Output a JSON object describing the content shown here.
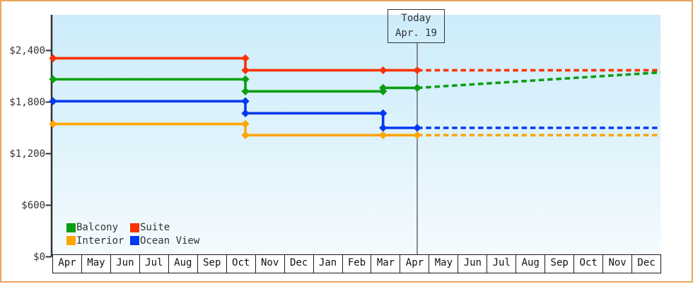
{
  "window": {
    "background_color": "#ffffff",
    "border_color": "#eaa55e"
  },
  "chart_data": {
    "type": "line",
    "description_units": "x in months from first Apr (0) to final Dec (21), y in US dollars",
    "x_tick_labels": [
      "Apr",
      "May",
      "Jun",
      "Jul",
      "Aug",
      "Sep",
      "Oct",
      "Nov",
      "Dec",
      "Jan",
      "Feb",
      "Mar",
      "Apr",
      "May",
      "Jun",
      "Jul",
      "Aug",
      "Sep",
      "Oct",
      "Nov",
      "Dec"
    ],
    "y_ticks": [
      {
        "label": "$2,400",
        "value": 2400
      },
      {
        "label": "$1,800",
        "value": 1800
      },
      {
        "label": "$1,200",
        "value": 1200
      },
      {
        "label": "$600",
        "value": 600
      },
      {
        "label": "$0",
        "value": 0
      }
    ],
    "ylim": [
      0,
      2815
    ],
    "xlim_months": [
      0,
      21
    ],
    "grid": false,
    "today": {
      "label": "Today",
      "date": "Apr. 19",
      "month_offset": 12.59
    },
    "axis_color": "#333333",
    "today_line_color": "#555555",
    "legend_position": "inside-bottom-left",
    "legend": [
      {
        "label": "Balcony",
        "color": "#0a9e12"
      },
      {
        "label": "Suite",
        "color": "#fa3305"
      },
      {
        "label": "Interior",
        "color": "#ffa502"
      },
      {
        "label": "Ocean View",
        "color": "#0639ee"
      }
    ],
    "series": [
      {
        "name": "Suite",
        "color": "#fa3305",
        "points_solid": [
          [
            0,
            2310
          ],
          [
            6.65,
            2310
          ],
          [
            6.65,
            2170
          ],
          [
            11.41,
            2170
          ],
          [
            12.59,
            2170
          ]
        ],
        "points_dashed_forecast": [
          [
            12.59,
            2170
          ],
          [
            21,
            2170
          ]
        ],
        "markers": [
          [
            0,
            2310
          ],
          [
            6.65,
            2310
          ],
          [
            6.65,
            2170
          ],
          [
            11.41,
            2170
          ],
          [
            12.59,
            2170
          ]
        ]
      },
      {
        "name": "Balcony",
        "color": "#0a9e12",
        "points_solid": [
          [
            0,
            2065
          ],
          [
            6.65,
            2065
          ],
          [
            6.65,
            1925
          ],
          [
            11.41,
            1925
          ],
          [
            11.41,
            1965
          ],
          [
            12.59,
            1965
          ]
        ],
        "points_dashed_forecast": [
          [
            12.59,
            1965
          ],
          [
            21,
            2145
          ]
        ],
        "markers": [
          [
            0,
            2065
          ],
          [
            6.65,
            2065
          ],
          [
            6.65,
            1925
          ],
          [
            11.41,
            1925
          ],
          [
            11.41,
            1965
          ],
          [
            12.59,
            1965
          ]
        ]
      },
      {
        "name": "Ocean View",
        "color": "#0639ee",
        "points_solid": [
          [
            0,
            1810
          ],
          [
            6.65,
            1810
          ],
          [
            6.65,
            1670
          ],
          [
            11.41,
            1670
          ],
          [
            11.41,
            1500
          ],
          [
            12.59,
            1500
          ]
        ],
        "points_dashed_forecast": [
          [
            12.59,
            1500
          ],
          [
            21,
            1500
          ]
        ],
        "markers": [
          [
            0,
            1810
          ],
          [
            6.65,
            1810
          ],
          [
            6.65,
            1670
          ],
          [
            11.41,
            1670
          ],
          [
            11.41,
            1500
          ],
          [
            12.59,
            1500
          ]
        ]
      },
      {
        "name": "Interior",
        "color": "#ffa502",
        "points_solid": [
          [
            0,
            1545
          ],
          [
            6.65,
            1545
          ],
          [
            6.65,
            1415
          ],
          [
            11.41,
            1415
          ],
          [
            12.59,
            1415
          ]
        ],
        "points_dashed_forecast": [
          [
            12.59,
            1415
          ],
          [
            21,
            1415
          ]
        ],
        "markers": [
          [
            0,
            1545
          ],
          [
            6.65,
            1545
          ],
          [
            6.65,
            1415
          ],
          [
            11.41,
            1415
          ],
          [
            12.59,
            1415
          ]
        ]
      }
    ]
  }
}
